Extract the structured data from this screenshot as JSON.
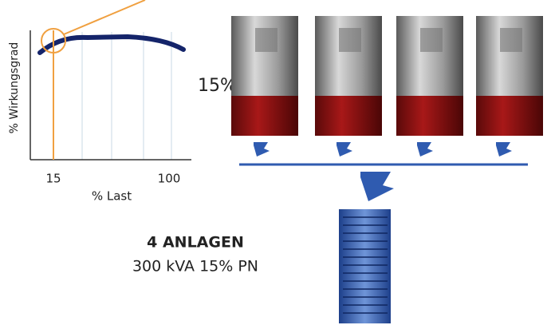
{
  "efficiency_chart": {
    "y_label": "% Wirkungsgrad",
    "x_label": "% Last",
    "xticks": [
      15,
      100
    ]
  },
  "load_label": "15%",
  "summary": {
    "title": "4 ANLAGEN",
    "subtitle": "300 kVA 15% PN"
  }
}
